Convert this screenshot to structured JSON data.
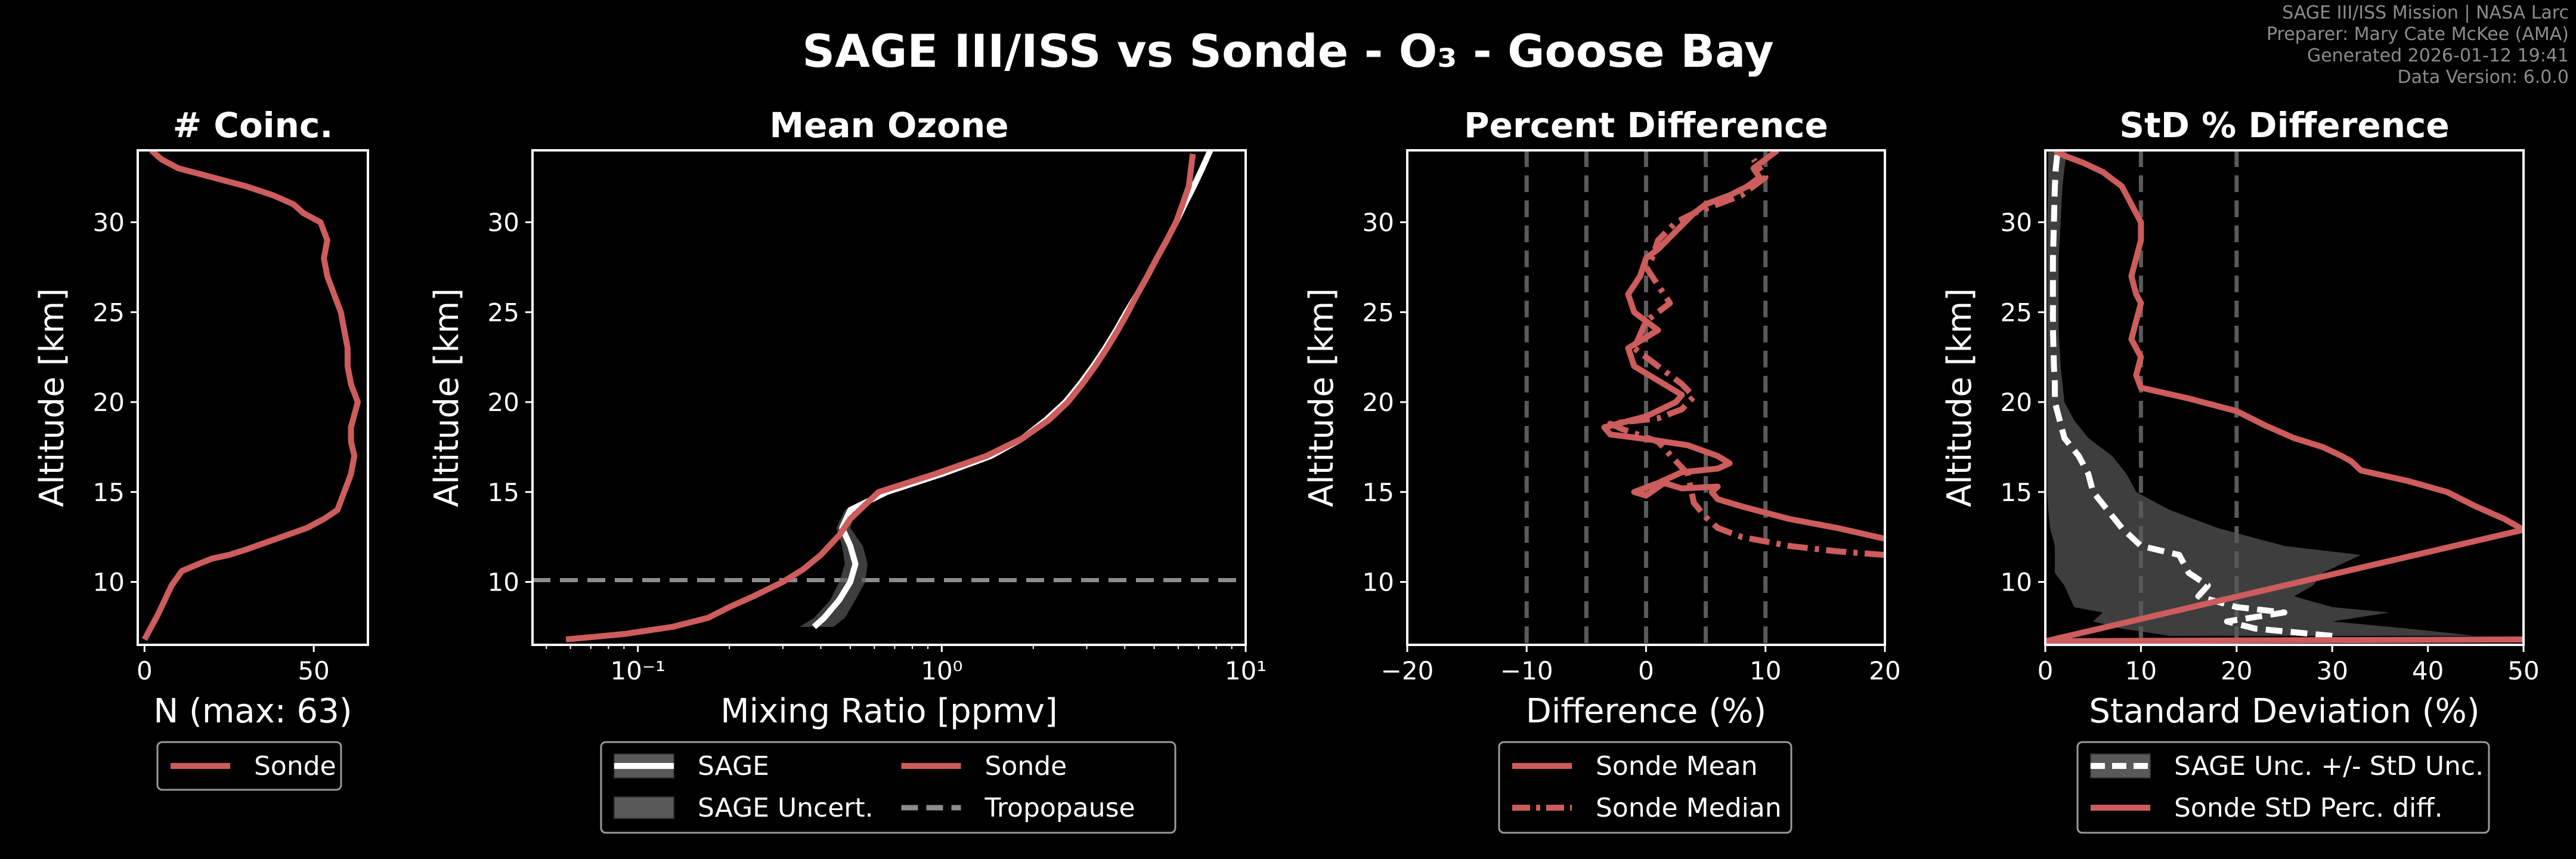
{
  "figure": {
    "title": "SAGE III/ISS vs Sonde - O₃ - Goose Bay",
    "credits": [
      "SAGE III/ISS Mission | NASA Larc",
      "Preparer: Mary Cate McKee (AMA)",
      "Generated 2026-01-12 19:41",
      "Data Version: 6.0.0"
    ],
    "colors": {
      "background": "#000000",
      "sonde": "#cd5c5c",
      "sage": "#ffffff",
      "uncert": "#595959",
      "tropopause": "#8c8c8c",
      "refline": "#5a5a5a"
    }
  },
  "chart_data": [
    {
      "id": "coinc",
      "type": "line",
      "title": "# Coinc.",
      "xlabel": "N (max: 63)",
      "ylabel": "Altitude [km]",
      "xlim": [
        -2,
        66
      ],
      "ylim": [
        6.5,
        34
      ],
      "xticks": [
        0,
        50
      ],
      "yticks": [
        10,
        15,
        20,
        25,
        30
      ],
      "legend": [
        "Sonde"
      ],
      "series": [
        {
          "name": "Sonde",
          "style": "solid",
          "color": "sonde",
          "x": [
            0,
            2,
            4,
            6,
            8,
            11,
            16,
            20,
            25,
            30,
            36,
            42,
            48,
            53,
            57,
            59,
            61,
            62,
            61,
            61,
            63,
            61,
            60,
            60,
            59,
            58,
            56,
            54,
            53,
            54,
            52,
            47,
            44,
            38,
            30,
            20,
            10,
            5,
            2
          ],
          "y": [
            6.8,
            7.5,
            8.2,
            9.0,
            9.8,
            10.6,
            11.0,
            11.3,
            11.5,
            11.8,
            12.2,
            12.6,
            13.0,
            13.5,
            14.0,
            15.0,
            16.0,
            17.0,
            17.8,
            18.6,
            20.0,
            21.0,
            22.0,
            23.0,
            24.0,
            25.0,
            26.0,
            27.0,
            28.0,
            29.0,
            30.0,
            30.5,
            31.0,
            31.5,
            32.0,
            32.5,
            33.0,
            33.5,
            34.0
          ]
        }
      ]
    },
    {
      "id": "mean",
      "type": "line",
      "title": "Mean Ozone",
      "xlabel": "Mixing Ratio [ppmv]",
      "ylabel": "Altitude [km]",
      "xscale": "log",
      "xlim": [
        0.045,
        10
      ],
      "ylim": [
        6.5,
        34
      ],
      "xticks": [
        0.1,
        1,
        10
      ],
      "xticklabels": [
        "10⁻¹",
        "10⁰",
        "10¹"
      ],
      "yticks": [
        10,
        15,
        20,
        25,
        30
      ],
      "tropopause_km": 10.1,
      "legend": [
        "SAGE",
        "Sonde",
        "SAGE Uncert.",
        "Tropopause"
      ],
      "series": [
        {
          "name": "SAGE",
          "style": "solid",
          "color": "sage",
          "y": [
            7.5,
            8.0,
            9.0,
            10.0,
            11.0,
            12.0,
            13.0,
            14.0,
            15.0,
            16.0,
            17.0,
            18.0,
            19.0,
            20.0,
            21.0,
            22.0,
            23.0,
            24.0,
            25.0,
            26.0,
            27.0,
            28.0,
            29.0,
            30.0,
            31.0,
            32.0,
            33.0,
            34.0
          ],
          "x": [
            0.38,
            0.41,
            0.46,
            0.5,
            0.52,
            0.5,
            0.47,
            0.5,
            0.66,
            1.0,
            1.45,
            1.85,
            2.2,
            2.55,
            2.85,
            3.15,
            3.45,
            3.75,
            4.05,
            4.4,
            4.75,
            5.1,
            5.5,
            5.9,
            6.3,
            6.75,
            7.2,
            7.65
          ],
          "band_lo": [
            0.34,
            0.38,
            0.43,
            0.46,
            0.48,
            0.47,
            0.45,
            0.48,
            0.63,
            0.97,
            1.4,
            1.8,
            2.15,
            2.5,
            2.8,
            3.1,
            3.4,
            3.7,
            4.0,
            4.35,
            4.7,
            5.05,
            5.45,
            5.85,
            6.25,
            6.7,
            7.15,
            7.6
          ],
          "band_hi": [
            0.44,
            0.48,
            0.52,
            0.56,
            0.57,
            0.55,
            0.5,
            0.52,
            0.69,
            1.03,
            1.5,
            1.9,
            2.25,
            2.6,
            2.9,
            3.2,
            3.5,
            3.8,
            4.1,
            4.45,
            4.8,
            5.15,
            5.55,
            5.95,
            6.35,
            6.8,
            7.25,
            7.7
          ]
        },
        {
          "name": "Sonde",
          "style": "solid",
          "color": "sonde",
          "x": [
            0.058,
            0.09,
            0.13,
            0.17,
            0.2,
            0.24,
            0.3,
            0.35,
            0.4,
            0.46,
            0.5,
            0.62,
            0.95,
            1.4,
            1.85,
            2.25,
            2.6,
            2.9,
            3.2,
            3.5,
            3.8,
            4.1,
            4.4,
            4.75,
            5.1,
            5.5,
            5.9,
            6.2,
            6.5,
            6.7
          ],
          "y": [
            6.8,
            7.1,
            7.5,
            8.0,
            8.6,
            9.2,
            10.0,
            10.7,
            11.5,
            12.6,
            13.5,
            15.0,
            16.0,
            17.0,
            18.0,
            19.0,
            20.0,
            21.0,
            22.0,
            23.0,
            24.0,
            25.0,
            26.0,
            27.0,
            28.0,
            29.0,
            30.0,
            31.0,
            32.0,
            33.8
          ]
        }
      ]
    },
    {
      "id": "pdiff",
      "type": "line",
      "title": "Percent Difference",
      "xlabel": "Difference (%)",
      "ylabel": "Altitude [km]",
      "xlim": [
        -20,
        20
      ],
      "ylim": [
        6.5,
        34
      ],
      "xticks": [
        -20,
        -10,
        0,
        10,
        20
      ],
      "xticklabels": [
        "−20",
        "−10",
        "0",
        "10",
        "20"
      ],
      "yticks": [
        10,
        15,
        20,
        25,
        30
      ],
      "vlines": [
        -10,
        -5,
        0,
        5,
        10
      ],
      "legend": [
        "Sonde Mean",
        "Sonde Median"
      ],
      "series": [
        {
          "name": "Sonde Mean",
          "style": "solid",
          "color": "sonde",
          "x": [
            20,
            16,
            12,
            8,
            6,
            5.5,
            6,
            3,
            1.5,
            0,
            -1,
            1,
            3,
            6,
            7,
            6,
            3.5,
            0.5,
            -3,
            -3.5,
            0,
            2.5,
            3,
            1.5,
            -1,
            -1.5,
            1,
            -1,
            -1.5,
            -0.5,
            0,
            1,
            2.5,
            4,
            5,
            7,
            8.5,
            9.5,
            9,
            10,
            11
          ],
          "y": [
            12.4,
            13.0,
            13.5,
            14.2,
            14.6,
            15.0,
            15.3,
            15.2,
            15.5,
            14.8,
            15.0,
            15.5,
            16.1,
            16.3,
            16.6,
            17.0,
            17.6,
            17.9,
            18.2,
            18.6,
            19.2,
            20.0,
            20.4,
            21.0,
            22.0,
            23.0,
            24.0,
            25.0,
            26.0,
            27.0,
            28.0,
            28.5,
            29.5,
            30.5,
            31.0,
            31.5,
            32.0,
            32.5,
            33.0,
            33.5,
            34.0
          ]
        },
        {
          "name": "Sonde Median",
          "style": "dashdot",
          "color": "sonde",
          "x": [
            20,
            16,
            12,
            8,
            6,
            5,
            4,
            3.5,
            1,
            -2,
            -3,
            1,
            3,
            4,
            3,
            1,
            -1,
            0,
            2,
            1,
            0,
            0.5,
            1,
            2.5,
            4,
            6,
            8,
            9,
            10,
            9
          ],
          "y": [
            11.5,
            11.7,
            12.0,
            12.5,
            13.0,
            13.6,
            14.4,
            16.0,
            17.8,
            18.5,
            18.8,
            19.1,
            19.6,
            20.3,
            21.0,
            22.0,
            23.0,
            24.5,
            25.5,
            26.5,
            27.5,
            28.0,
            29.0,
            30.0,
            30.5,
            31.0,
            31.5,
            32.0,
            32.5,
            33.5
          ]
        }
      ]
    },
    {
      "id": "std",
      "type": "line",
      "title": "StD % Difference",
      "xlabel": "Standard Deviation (%)",
      "ylabel": "Altitude [km]",
      "xlim": [
        0,
        50
      ],
      "ylim": [
        6.5,
        34
      ],
      "xticks": [
        0,
        10,
        20,
        30,
        40,
        50
      ],
      "yticks": [
        10,
        15,
        20,
        25,
        30
      ],
      "vlines": [
        10,
        20
      ],
      "legend": [
        "SAGE Unc. +/- StD Unc.",
        "Sonde StD Perc. diff."
      ],
      "series": [
        {
          "name": "SAGE Unc. +/- StD Unc.",
          "style": "dashed",
          "color": "sage",
          "y": [
            7.0,
            7.4,
            7.8,
            8.3,
            8.6,
            9.2,
            9.8,
            10.5,
            11.5,
            12.0,
            13.0,
            14.0,
            15.0,
            16.0,
            17.0,
            18.0,
            19.0,
            20.0,
            21.0,
            22.0,
            24.0,
            26.0,
            28.0,
            30.0,
            32.0,
            33.0,
            34.0
          ],
          "x": [
            30,
            22,
            19,
            25,
            20,
            16,
            17,
            15,
            14,
            10,
            8,
            6.5,
            5,
            4.5,
            3.5,
            2,
            1.5,
            1,
            1,
            0.9,
            0.8,
            0.8,
            0.8,
            0.9,
            1,
            1.1,
            1.3
          ],
          "band_lo": [
            13,
            8,
            5,
            6,
            3,
            2.5,
            2,
            1,
            1,
            1,
            0.5,
            0.3,
            0.2,
            0.2,
            0.2,
            0.2,
            0.2,
            0.2,
            0.2,
            0.2,
            0.2,
            0.2,
            0.2,
            0.2,
            0.3,
            0.3,
            0.3
          ],
          "band_hi": [
            45,
            38,
            30,
            36,
            30,
            26,
            28,
            29,
            33,
            25,
            18,
            13,
            9.5,
            8.5,
            7,
            4.5,
            3,
            2,
            1.8,
            1.6,
            1.4,
            1.4,
            1.4,
            1.6,
            1.8,
            2,
            2.3
          ]
        },
        {
          "name": "Sonde StD Perc. diff.",
          "style": "solid",
          "color": "sonde",
          "x": [
            50,
            0,
            50,
            48,
            45,
            42,
            38,
            33,
            32,
            31,
            29,
            26,
            23,
            20,
            15,
            10,
            9.5,
            10,
            9,
            9.5,
            10,
            9.5,
            9,
            9.5,
            10,
            10,
            9.5,
            9,
            8,
            6,
            4,
            2,
            1
          ],
          "y": [
            6.8,
            6.7,
            12.9,
            13.5,
            14.2,
            15.0,
            15.6,
            16.2,
            16.7,
            17.0,
            17.5,
            18.0,
            18.7,
            19.5,
            20.2,
            20.8,
            21.5,
            22.5,
            23.5,
            24.5,
            25.5,
            26.0,
            27.0,
            28.0,
            29.0,
            30.0,
            30.5,
            31.0,
            32.0,
            32.8,
            33.3,
            33.7,
            34.0
          ]
        }
      ]
    }
  ]
}
